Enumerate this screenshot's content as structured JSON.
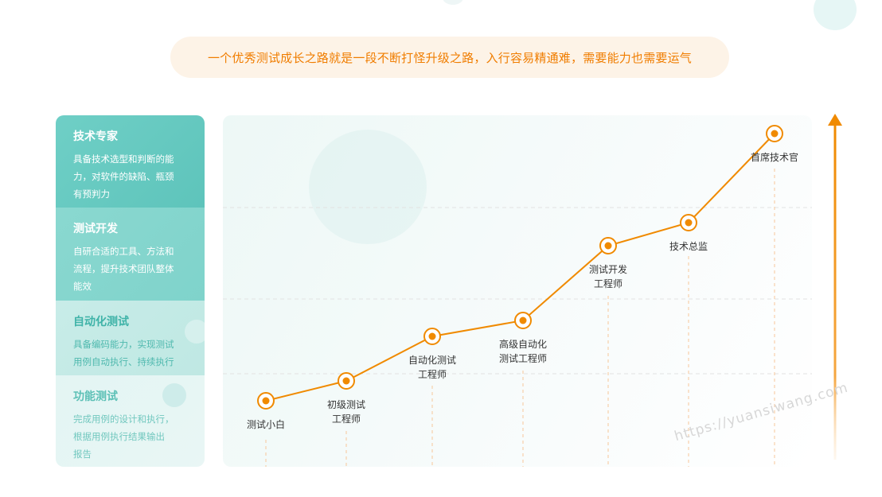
{
  "tagline": "一个优秀测试成长之路就是一段不断打怪升级之路，入行容易精通难，需要能力也需要运气",
  "levels": [
    {
      "title": "技术专家",
      "desc_lines": [
        "具备技术选型和判断的能",
        "力，对软件的缺陷、瓶颈",
        "有预判力"
      ]
    },
    {
      "title": "测试开发",
      "desc_lines": [
        "自研合适的工具、方法和",
        "流程，提升技术团队整体",
        "能效"
      ]
    },
    {
      "title": "自动化测试",
      "desc_lines": [
        "具备编码能力，实现测试",
        "用例自动执行、持续执行"
      ]
    },
    {
      "title": "功能测试",
      "desc_lines": [
        "完成用例的设计和执行，",
        "根据用例执行结果输出",
        "报告"
      ]
    }
  ],
  "stages": [
    {
      "label_lines": [
        "测试小白"
      ]
    },
    {
      "label_lines": [
        "初级测试",
        "工程师"
      ]
    },
    {
      "label_lines": [
        "自动化测试",
        "工程师"
      ]
    },
    {
      "label_lines": [
        "高级自动化",
        "测试工程师"
      ]
    },
    {
      "label_lines": [
        "测试开发",
        "工程师"
      ]
    },
    {
      "label_lines": [
        "技术总监"
      ]
    },
    {
      "label_lines": [
        "首席技术官"
      ]
    }
  ],
  "watermark": "https://yuansiwang.com",
  "colors": {
    "accent_orange": "#f08a00",
    "teal": "#5ec4bb",
    "tagline_bg": "#fdf3e7"
  }
}
